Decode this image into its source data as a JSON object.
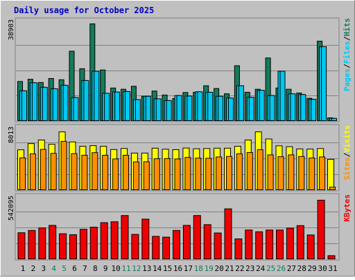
{
  "title": "Daily usage for October 2025",
  "colors": {
    "background": "#c0c0c0",
    "frame_light": "#ffffff",
    "frame_dark": "#808080",
    "title": "#0000c0",
    "hits": "#157b5d",
    "files": "#00c8f0",
    "pages": "#00c8f0",
    "visits": "#ffff00",
    "sites": "#ff9000",
    "kbytes": "#ee0000",
    "weekend_label": "#157b5d",
    "weekday_label": "#000000",
    "gridline": "#808080"
  },
  "chart_data": [
    {
      "type": "bar",
      "name": "hits-files-pages",
      "categories": [
        "1",
        "2",
        "3",
        "4",
        "5",
        "6",
        "7",
        "8",
        "9",
        "10",
        "11",
        "12",
        "13",
        "14",
        "15",
        "16",
        "17",
        "18",
        "19",
        "20",
        "21",
        "22",
        "23",
        "24",
        "25",
        "26",
        "27",
        "28",
        "29",
        "30",
        "31"
      ],
      "weekend_days": [
        "4",
        "5",
        "11",
        "12",
        "18",
        "19",
        "25",
        "26"
      ],
      "ymax_label": "38903",
      "ylim": [
        0,
        38903
      ],
      "axis_label_parts": [
        "Pages",
        "Files",
        "Hits"
      ],
      "series": [
        {
          "name": "Hits",
          "values": [
            15900,
            16800,
            15500,
            17100,
            16600,
            28000,
            21000,
            38903,
            20500,
            13300,
            12800,
            14000,
            10000,
            12100,
            10500,
            9100,
            11500,
            11600,
            14200,
            13100,
            11000,
            22200,
            11600,
            12800,
            25300,
            13300,
            12800,
            11300,
            9200,
            32000,
            1400
          ]
        },
        {
          "name": "Files",
          "values": [
            12200,
            15400,
            13600,
            13000,
            14400,
            9500,
            16300,
            20000,
            11200,
            11700,
            11900,
            8700,
            10000,
            9000,
            8300,
            10300,
            10100,
            11800,
            11600,
            10000,
            9300,
            14200,
            9600,
            12400,
            10300,
            20000,
            11000,
            10700,
            8800,
            29800,
            1200
          ]
        },
        {
          "name": "Pages",
          "values": [
            12200,
            15400,
            13600,
            13000,
            14400,
            9500,
            16300,
            20000,
            11200,
            11700,
            11900,
            8700,
            10000,
            9000,
            8300,
            10300,
            10100,
            11800,
            11600,
            10000,
            9300,
            14200,
            9600,
            12400,
            10300,
            20000,
            11000,
            10700,
            8800,
            29800,
            1200
          ]
        }
      ]
    },
    {
      "type": "bar",
      "name": "visits-sites",
      "categories": [
        "1",
        "2",
        "3",
        "4",
        "5",
        "6",
        "7",
        "8",
        "9",
        "10",
        "11",
        "12",
        "13",
        "14",
        "15",
        "16",
        "17",
        "18",
        "19",
        "20",
        "21",
        "22",
        "23",
        "24",
        "25",
        "26",
        "27",
        "28",
        "29",
        "30",
        "31"
      ],
      "ymax_label": "8013",
      "ylim": [
        0,
        8013
      ],
      "axis_label_parts": [
        "Sites",
        "Visits"
      ],
      "series": [
        {
          "name": "Visits",
          "values": [
            5480,
            6320,
            6800,
            6220,
            7900,
            6540,
            5960,
            6040,
            5960,
            5520,
            5660,
            5040,
            5040,
            5700,
            5560,
            5500,
            5720,
            5620,
            5650,
            5700,
            5700,
            5960,
            6800,
            7900,
            6940,
            6020,
            5900,
            5600,
            5580,
            5650,
            4200
          ]
        },
        {
          "name": "Sites",
          "values": [
            4400,
            4930,
            5540,
            5000,
            6620,
            4960,
            4750,
            5100,
            4750,
            4250,
            4750,
            3850,
            3870,
            4280,
            4300,
            4250,
            4460,
            4360,
            4340,
            4520,
            4590,
            4940,
            5120,
            5500,
            4800,
            4550,
            4800,
            4580,
            4380,
            4520,
            450
          ]
        }
      ]
    },
    {
      "type": "bar",
      "name": "kbytes",
      "categories": [
        "1",
        "2",
        "3",
        "4",
        "5",
        "6",
        "7",
        "8",
        "9",
        "10",
        "11",
        "12",
        "13",
        "14",
        "15",
        "16",
        "17",
        "18",
        "19",
        "20",
        "21",
        "22",
        "23",
        "24",
        "25",
        "26",
        "27",
        "28",
        "29",
        "30",
        "31"
      ],
      "ymax_label": "542095",
      "ylim": [
        0,
        542095
      ],
      "axis_label_parts": [
        "KBytes"
      ],
      "series": [
        {
          "name": "KBytes",
          "values": [
            245000,
            266000,
            289000,
            312000,
            236000,
            227000,
            276000,
            296000,
            337000,
            345000,
            402000,
            230000,
            369000,
            212000,
            205000,
            266000,
            312000,
            402000,
            319000,
            243000,
            463000,
            189000,
            270000,
            254000,
            270000,
            270000,
            287000,
            310000,
            225000,
            542095,
            36000
          ]
        }
      ]
    }
  ]
}
